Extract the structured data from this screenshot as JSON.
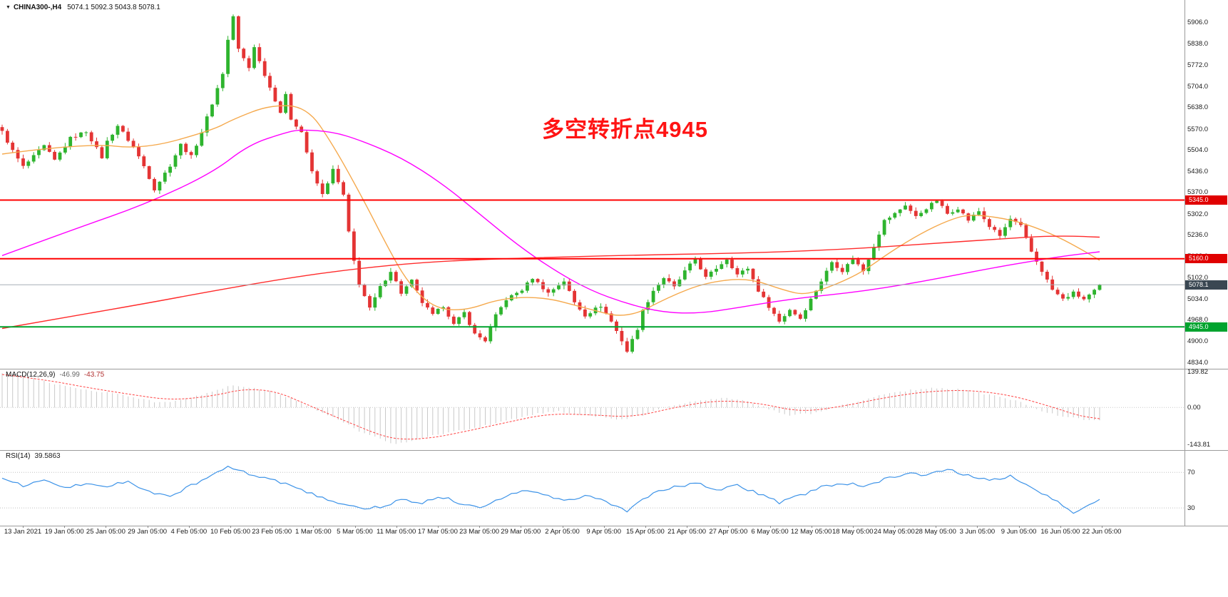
{
  "header": {
    "marker": "▼",
    "symbol": "CHINA300-,H4",
    "ohlc": "5074.1 5092.3 5043.8 5078.1"
  },
  "annotation": {
    "text": "多空转折点4945",
    "color": "#ff1414"
  },
  "indicators": {
    "macd": {
      "name": "MACD(12,26,9)",
      "value_main": "-46.99",
      "value_signal": "-43.75",
      "axis": [
        {
          "text": "139.82",
          "value": 139.82
        },
        {
          "text": "0.00",
          "value": 0
        },
        {
          "text": "-143.81",
          "value": -143.81
        }
      ]
    },
    "rsi": {
      "name": "RSI(14)",
      "value": "39.5863",
      "axis": [
        {
          "text": "70",
          "value": 70
        },
        {
          "text": "30",
          "value": 30
        }
      ]
    }
  },
  "price_axis": {
    "labels": [
      "5906.0",
      "5838.0",
      "5772.0",
      "5704.0",
      "5638.0",
      "5570.0",
      "5504.0",
      "5436.0",
      "5370.0",
      "5302.0",
      "5236.0",
      "5168.0",
      "5102.0",
      "5034.0",
      "4968.0",
      "4900.0",
      "4834.0"
    ],
    "tags": [
      {
        "text": "5345.0",
        "price": 5345.0,
        "bg": "#e00000"
      },
      {
        "text": "5160.0",
        "price": 5160.0,
        "bg": "#e00000"
      },
      {
        "text": "5078.1",
        "price": 5078.1,
        "bg": "#3a4752"
      },
      {
        "text": "4945.0",
        "price": 4945.0,
        "bg": "#00a32e"
      }
    ]
  },
  "time_axis": {
    "labels": [
      "13 Jan 2021",
      "19 Jan 05:00",
      "25 Jan 05:00",
      "29 Jan 05:00",
      "4 Feb 05:00",
      "10 Feb 05:00",
      "23 Feb 05:00",
      "1 Mar 05:00",
      "5 Mar 05:00",
      "11 Mar 05:00",
      "17 Mar 05:00",
      "23 Mar 05:00",
      "29 Mar 05:00",
      "2 Apr 05:00",
      "9 Apr 05:00",
      "15 Apr 05:00",
      "21 Apr 05:00",
      "27 Apr 05:00",
      "6 May 05:00",
      "12 May 05:00",
      "18 May 05:00",
      "24 May 05:00",
      "28 May 05:00",
      "3 Jun 05:00",
      "9 Jun 05:00",
      "16 Jun 05:00",
      "22 Jun 05:00"
    ]
  },
  "chart_data": {
    "type": "candlestick",
    "title": "CHINA300-,H4",
    "symbol": "CHINA300-",
    "timeframe": "H4",
    "last_bar": {
      "open": 5074.1,
      "high": 5092.3,
      "low": 5043.8,
      "close": 5078.1
    },
    "bars": 210,
    "price_range": [
      4813,
      5976
    ],
    "colors": {
      "up": "#2eb42e",
      "down": "#e43434",
      "ma_fast": "#f5a94d",
      "ma_mid": "#ff00ff",
      "ma_slow": "#ff2b2b",
      "hist": "#c9c9c9",
      "signal": "#ff4242",
      "rsi": "#3d93e8",
      "level_red": "#ff0000",
      "level_green": "#00a32e",
      "last_price_line": "#a6adb5"
    },
    "levels": [
      {
        "price": 5345.0,
        "color": "#ff0000",
        "width": 2,
        "style": "solid"
      },
      {
        "price": 5160.0,
        "color": "#ff0000",
        "width": 2,
        "style": "solid"
      },
      {
        "price": 4945.0,
        "color": "#00a32e",
        "width": 2,
        "style": "solid"
      },
      {
        "price": 5078.1,
        "color": "#a6adb5",
        "width": 1,
        "style": "last"
      }
    ],
    "price_path_keyframes": [
      [
        0,
        5560
      ],
      [
        2,
        5500
      ],
      [
        4,
        5450
      ],
      [
        6,
        5482
      ],
      [
        8,
        5515
      ],
      [
        10,
        5470
      ],
      [
        13,
        5540
      ],
      [
        16,
        5562
      ],
      [
        19,
        5480
      ],
      [
        20,
        5530
      ],
      [
        22,
        5580
      ],
      [
        25,
        5512
      ],
      [
        27,
        5452
      ],
      [
        29,
        5380
      ],
      [
        32,
        5455
      ],
      [
        34,
        5520
      ],
      [
        36,
        5482
      ],
      [
        38,
        5560
      ],
      [
        40,
        5650
      ],
      [
        42,
        5745
      ],
      [
        43,
        5850
      ],
      [
        44,
        5925
      ],
      [
        45,
        5820
      ],
      [
        47,
        5762
      ],
      [
        48,
        5830
      ],
      [
        49,
        5782
      ],
      [
        51,
        5700
      ],
      [
        53,
        5622
      ],
      [
        54,
        5675
      ],
      [
        55,
        5602
      ],
      [
        57,
        5560
      ],
      [
        59,
        5432
      ],
      [
        61,
        5362
      ],
      [
        63,
        5440
      ],
      [
        65,
        5360
      ],
      [
        66,
        5242
      ],
      [
        67,
        5152
      ],
      [
        68,
        5082
      ],
      [
        70,
        5002
      ],
      [
        72,
        5070
      ],
      [
        74,
        5122
      ],
      [
        76,
        5052
      ],
      [
        78,
        5090
      ],
      [
        80,
        5022
      ],
      [
        82,
        4982
      ],
      [
        84,
        5012
      ],
      [
        86,
        4952
      ],
      [
        88,
        4990
      ],
      [
        90,
        4922
      ],
      [
        92,
        4902
      ],
      [
        94,
        4980
      ],
      [
        96,
        5032
      ],
      [
        99,
        5062
      ],
      [
        101,
        5100
      ],
      [
        104,
        5052
      ],
      [
        107,
        5090
      ],
      [
        109,
        5022
      ],
      [
        111,
        4982
      ],
      [
        114,
        5012
      ],
      [
        116,
        4962
      ],
      [
        118,
        4902
      ],
      [
        119,
        4868
      ],
      [
        121,
        4940
      ],
      [
        122,
        4995
      ],
      [
        124,
        5060
      ],
      [
        126,
        5100
      ],
      [
        128,
        5070
      ],
      [
        130,
        5120
      ],
      [
        132,
        5160
      ],
      [
        134,
        5100
      ],
      [
        136,
        5130
      ],
      [
        138,
        5160
      ],
      [
        140,
        5110
      ],
      [
        142,
        5130
      ],
      [
        144,
        5060
      ],
      [
        146,
        5010
      ],
      [
        148,
        4962
      ],
      [
        150,
        5000
      ],
      [
        152,
        4972
      ],
      [
        154,
        5032
      ],
      [
        156,
        5090
      ],
      [
        158,
        5150
      ],
      [
        160,
        5122
      ],
      [
        162,
        5160
      ],
      [
        164,
        5122
      ],
      [
        166,
        5200
      ],
      [
        168,
        5280
      ],
      [
        170,
        5302
      ],
      [
        172,
        5330
      ],
      [
        174,
        5292
      ],
      [
        176,
        5320
      ],
      [
        178,
        5344
      ],
      [
        180,
        5302
      ],
      [
        182,
        5320
      ],
      [
        184,
        5282
      ],
      [
        186,
        5310
      ],
      [
        188,
        5262
      ],
      [
        190,
        5232
      ],
      [
        192,
        5285
      ],
      [
        194,
        5262
      ],
      [
        196,
        5182
      ],
      [
        198,
        5122
      ],
      [
        200,
        5062
      ],
      [
        202,
        5032
      ],
      [
        204,
        5052
      ],
      [
        206,
        5032
      ],
      [
        208,
        5062
      ],
      [
        209,
        5078.1
      ]
    ],
    "moving_averages": [
      {
        "name": "ma-fast-orange",
        "color": "#f5a94d",
        "keyframes": [
          [
            0,
            5490
          ],
          [
            16,
            5525
          ],
          [
            27,
            5505
          ],
          [
            40,
            5565
          ],
          [
            44,
            5600
          ],
          [
            51,
            5645
          ],
          [
            58,
            5640
          ],
          [
            63,
            5520
          ],
          [
            69,
            5340
          ],
          [
            73,
            5210
          ],
          [
            77,
            5090
          ],
          [
            82,
            5005
          ],
          [
            88,
            4995
          ],
          [
            95,
            5035
          ],
          [
            103,
            5040
          ],
          [
            111,
            5005
          ],
          [
            119,
            4970
          ],
          [
            127,
            5040
          ],
          [
            134,
            5085
          ],
          [
            142,
            5100
          ],
          [
            149,
            5060
          ],
          [
            153,
            5045
          ],
          [
            159,
            5080
          ],
          [
            164,
            5120
          ],
          [
            169,
            5180
          ],
          [
            175,
            5240
          ],
          [
            180,
            5280
          ],
          [
            184,
            5300
          ],
          [
            190,
            5290
          ],
          [
            195,
            5270
          ],
          [
            201,
            5230
          ],
          [
            206,
            5185
          ],
          [
            209,
            5155
          ]
        ]
      },
      {
        "name": "ma-mid-magenta",
        "color": "#ff00ff",
        "keyframes": [
          [
            0,
            5170
          ],
          [
            14,
            5255
          ],
          [
            27,
            5330
          ],
          [
            40,
            5430
          ],
          [
            47,
            5520
          ],
          [
            54,
            5558
          ],
          [
            57,
            5568
          ],
          [
            63,
            5560
          ],
          [
            68,
            5535
          ],
          [
            76,
            5480
          ],
          [
            84,
            5395
          ],
          [
            91,
            5300
          ],
          [
            98,
            5205
          ],
          [
            105,
            5125
          ],
          [
            112,
            5060
          ],
          [
            119,
            5018
          ],
          [
            126,
            4990
          ],
          [
            133,
            4988
          ],
          [
            140,
            5005
          ],
          [
            147,
            5025
          ],
          [
            154,
            5040
          ],
          [
            161,
            5052
          ],
          [
            168,
            5068
          ],
          [
            175,
            5088
          ],
          [
            182,
            5110
          ],
          [
            189,
            5132
          ],
          [
            196,
            5152
          ],
          [
            202,
            5168
          ],
          [
            209,
            5182
          ]
        ]
      },
      {
        "name": "ma-slow-red",
        "color": "#ff2b2b",
        "keyframes": [
          [
            0,
            4940
          ],
          [
            13,
            4978
          ],
          [
            27,
            5018
          ],
          [
            40,
            5058
          ],
          [
            54,
            5098
          ],
          [
            67,
            5128
          ],
          [
            81,
            5150
          ],
          [
            95,
            5160
          ],
          [
            108,
            5166
          ],
          [
            122,
            5172
          ],
          [
            136,
            5176
          ],
          [
            149,
            5182
          ],
          [
            163,
            5192
          ],
          [
            176,
            5207
          ],
          [
            190,
            5222
          ],
          [
            197,
            5230
          ],
          [
            203,
            5232
          ],
          [
            209,
            5228
          ]
        ]
      }
    ],
    "macd": {
      "range": [
        -165,
        150
      ],
      "histogram_keyframes": [
        [
          0,
          135
        ],
        [
          5,
          118
        ],
        [
          10,
          92
        ],
        [
          15,
          70
        ],
        [
          20,
          58
        ],
        [
          25,
          40
        ],
        [
          30,
          18
        ],
        [
          35,
          32
        ],
        [
          40,
          62
        ],
        [
          44,
          88
        ],
        [
          48,
          74
        ],
        [
          52,
          58
        ],
        [
          56,
          28
        ],
        [
          60,
          -12
        ],
        [
          64,
          -45
        ],
        [
          68,
          -92
        ],
        [
          72,
          -122
        ],
        [
          75,
          -143
        ],
        [
          78,
          -131
        ],
        [
          82,
          -110
        ],
        [
          86,
          -92
        ],
        [
          90,
          -80
        ],
        [
          94,
          -62
        ],
        [
          98,
          -42
        ],
        [
          102,
          -22
        ],
        [
          106,
          -16
        ],
        [
          110,
          -26
        ],
        [
          114,
          -36
        ],
        [
          118,
          -46
        ],
        [
          122,
          -30
        ],
        [
          126,
          -2
        ],
        [
          130,
          18
        ],
        [
          134,
          30
        ],
        [
          138,
          36
        ],
        [
          142,
          24
        ],
        [
          146,
          -6
        ],
        [
          150,
          -30
        ],
        [
          154,
          -24
        ],
        [
          158,
          -2
        ],
        [
          162,
          20
        ],
        [
          166,
          40
        ],
        [
          170,
          58
        ],
        [
          174,
          70
        ],
        [
          178,
          76
        ],
        [
          182,
          70
        ],
        [
          186,
          58
        ],
        [
          190,
          40
        ],
        [
          194,
          20
        ],
        [
          198,
          -12
        ],
        [
          202,
          -36
        ],
        [
          206,
          -46
        ],
        [
          209,
          -46.99
        ]
      ],
      "signal_keyframes": [
        [
          0,
          128
        ],
        [
          8,
          108
        ],
        [
          16,
          78
        ],
        [
          24,
          52
        ],
        [
          32,
          28
        ],
        [
          40,
          44
        ],
        [
          46,
          72
        ],
        [
          52,
          64
        ],
        [
          58,
          12
        ],
        [
          66,
          -58
        ],
        [
          72,
          -108
        ],
        [
          76,
          -125
        ],
        [
          82,
          -118
        ],
        [
          88,
          -94
        ],
        [
          96,
          -58
        ],
        [
          104,
          -24
        ],
        [
          112,
          -28
        ],
        [
          120,
          -38
        ],
        [
          128,
          0
        ],
        [
          136,
          28
        ],
        [
          144,
          18
        ],
        [
          152,
          -18
        ],
        [
          160,
          4
        ],
        [
          168,
          38
        ],
        [
          176,
          62
        ],
        [
          184,
          68
        ],
        [
          192,
          48
        ],
        [
          200,
          2
        ],
        [
          205,
          -32
        ],
        [
          209,
          -43.75
        ]
      ]
    },
    "rsi": {
      "range": [
        10,
        95
      ],
      "levels": [
        70,
        30
      ],
      "keyframes": [
        [
          0,
          62
        ],
        [
          4,
          55
        ],
        [
          8,
          60
        ],
        [
          12,
          52
        ],
        [
          16,
          58
        ],
        [
          20,
          54
        ],
        [
          24,
          60
        ],
        [
          28,
          48
        ],
        [
          32,
          43
        ],
        [
          36,
          55
        ],
        [
          40,
          66
        ],
        [
          43,
          77
        ],
        [
          46,
          70
        ],
        [
          50,
          63
        ],
        [
          54,
          58
        ],
        [
          58,
          48
        ],
        [
          62,
          40
        ],
        [
          66,
          33
        ],
        [
          70,
          29
        ],
        [
          74,
          34
        ],
        [
          76,
          40
        ],
        [
          80,
          36
        ],
        [
          84,
          42
        ],
        [
          88,
          34
        ],
        [
          92,
          31
        ],
        [
          96,
          44
        ],
        [
          100,
          50
        ],
        [
          104,
          43
        ],
        [
          108,
          39
        ],
        [
          112,
          44
        ],
        [
          116,
          33
        ],
        [
          119,
          27
        ],
        [
          124,
          46
        ],
        [
          128,
          53
        ],
        [
          132,
          58
        ],
        [
          136,
          50
        ],
        [
          140,
          55
        ],
        [
          144,
          46
        ],
        [
          148,
          36
        ],
        [
          152,
          44
        ],
        [
          156,
          53
        ],
        [
          160,
          58
        ],
        [
          164,
          55
        ],
        [
          168,
          62
        ],
        [
          172,
          69
        ],
        [
          176,
          66
        ],
        [
          180,
          73
        ],
        [
          184,
          66
        ],
        [
          188,
          61
        ],
        [
          192,
          66
        ],
        [
          196,
          53
        ],
        [
          200,
          41
        ],
        [
          202,
          33
        ],
        [
          204,
          25
        ],
        [
          206,
          31
        ],
        [
          208,
          36
        ],
        [
          209,
          39.59
        ]
      ]
    }
  }
}
